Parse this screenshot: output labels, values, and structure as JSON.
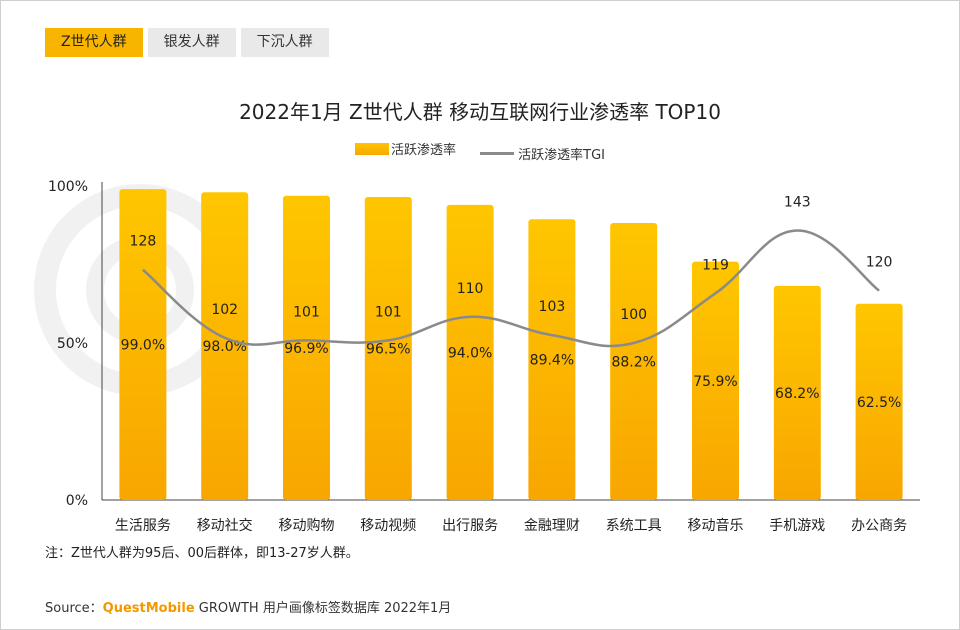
{
  "tabs": [
    {
      "label": "Z世代人群",
      "active": true
    },
    {
      "label": "银发人群",
      "active": false
    },
    {
      "label": "下沉人群",
      "active": false
    }
  ],
  "colors": {
    "bar_top": "#ffc600",
    "bar_bottom": "#f8a600",
    "line": "#8a8a8a",
    "accent": "#f8b500"
  },
  "watermark": "QUESTMOBILE",
  "chart_data": {
    "type": "bar",
    "title": "2022年1月 Z世代人群 移动互联网行业渗透率 TOP10",
    "categories": [
      "生活服务",
      "移动社交",
      "移动购物",
      "移动视频",
      "出行服务",
      "金融理财",
      "系统工具",
      "移动音乐",
      "手机游戏",
      "办公商务"
    ],
    "series": [
      {
        "name": "活跃渗透率",
        "type": "bar",
        "values": [
          99.0,
          98.0,
          96.9,
          96.5,
          94.0,
          89.4,
          88.2,
          75.9,
          68.2,
          62.5
        ],
        "labels": [
          "99.0%",
          "98.0%",
          "96.9%",
          "96.5%",
          "94.0%",
          "89.4%",
          "88.2%",
          "75.9%",
          "68.2%",
          "62.5%"
        ]
      },
      {
        "name": "活跃渗透率TGI",
        "type": "line",
        "values": [
          128,
          102,
          101,
          101,
          110,
          103,
          100,
          119,
          143,
          120
        ],
        "labels": [
          "128",
          "102",
          "101",
          "101",
          "110",
          "103",
          "100",
          "119",
          "143",
          "120"
        ]
      }
    ],
    "y_ticks": [
      "100%",
      "50%",
      "0%"
    ],
    "ylim": [
      0,
      100
    ],
    "tgi_ylim": [
      40,
      160
    ]
  },
  "note": "注：Z世代人群为95后、00后群体，即13-27岁人群。",
  "source": {
    "prefix": "Source：",
    "brand": "QuestMobile",
    "suffix": "GROWTH 用户画像标签数据库 2022年1月"
  }
}
